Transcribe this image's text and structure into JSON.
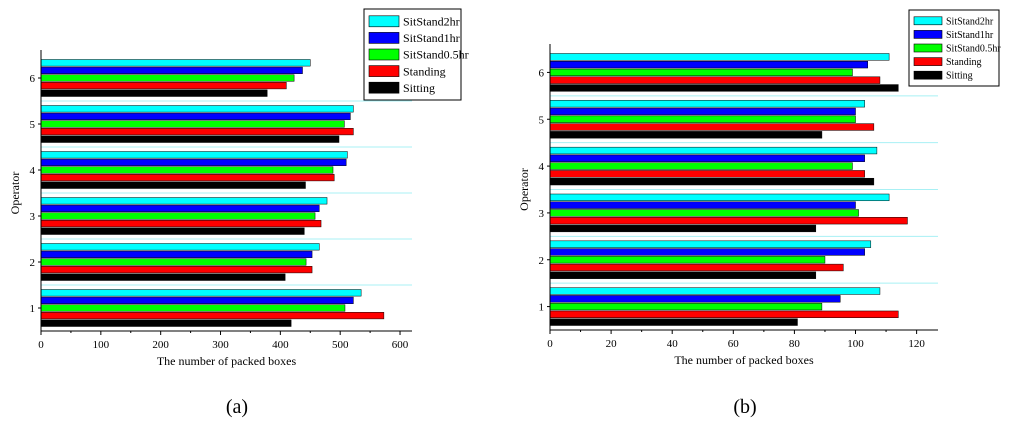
{
  "chart_data": [
    {
      "type": "bar",
      "orientation": "horizontal",
      "panel_label": "(a)",
      "xlabel": "The number of packed boxes",
      "ylabel": "Operator",
      "xlim": [
        0,
        620
      ],
      "xticks": [
        0,
        100,
        200,
        300,
        400,
        500,
        600
      ],
      "categories": [
        "1",
        "2",
        "3",
        "4",
        "5",
        "6"
      ],
      "legend_position": "top-right",
      "series": [
        {
          "name": "SitStand2hr",
          "color": "#00ffff",
          "values": [
            535,
            465,
            478,
            512,
            522,
            450
          ]
        },
        {
          "name": "SitStand1hr",
          "color": "#0000ff",
          "values": [
            522,
            453,
            465,
            510,
            517,
            437
          ]
        },
        {
          "name": "SitStand0.5hr",
          "color": "#00ff00",
          "values": [
            508,
            443,
            458,
            488,
            507,
            423
          ]
        },
        {
          "name": "Standing",
          "color": "#ff0000",
          "values": [
            573,
            453,
            468,
            490,
            522,
            410
          ]
        },
        {
          "name": "Sitting",
          "color": "#000000",
          "values": [
            418,
            408,
            440,
            442,
            498,
            378
          ]
        }
      ]
    },
    {
      "type": "bar",
      "orientation": "horizontal",
      "panel_label": "(b)",
      "xlabel": "The number of packed boxes",
      "ylabel": "Operator",
      "xlim": [
        0,
        127
      ],
      "xticks": [
        0,
        20,
        40,
        60,
        80,
        100,
        120
      ],
      "categories": [
        "1",
        "2",
        "3",
        "4",
        "5",
        "6"
      ],
      "legend_position": "top-right",
      "series": [
        {
          "name": "SitStand2hr",
          "color": "#00ffff",
          "values": [
            108,
            105,
            111,
            107,
            103,
            111
          ]
        },
        {
          "name": "SitStand1hr",
          "color": "#0000ff",
          "values": [
            95,
            103,
            100,
            103,
            100,
            104
          ]
        },
        {
          "name": "SitStand0.5hr",
          "color": "#00ff00",
          "values": [
            89,
            90,
            101,
            99,
            100,
            99
          ]
        },
        {
          "name": "Standing",
          "color": "#ff0000",
          "values": [
            114,
            96,
            117,
            103,
            106,
            108
          ]
        },
        {
          "name": "Sitting",
          "color": "#000000",
          "values": [
            81,
            87,
            87,
            106,
            89,
            114
          ]
        }
      ]
    }
  ]
}
